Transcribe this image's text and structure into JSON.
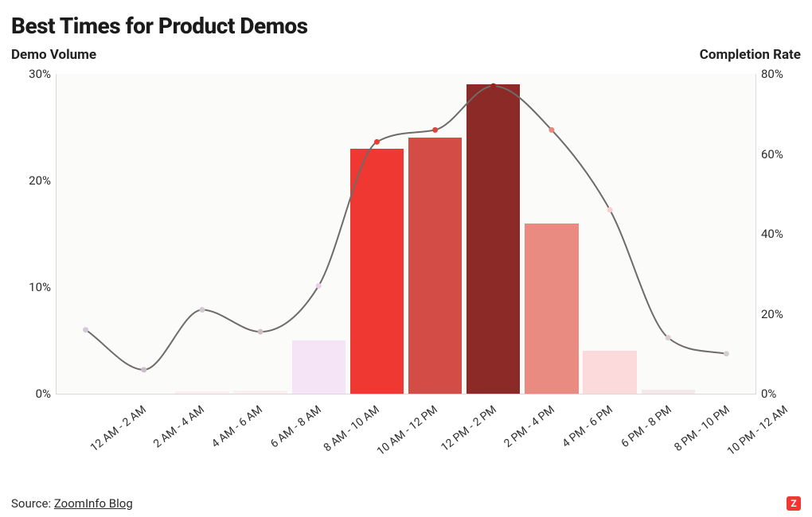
{
  "title": "Best Times for Product Demos",
  "title_fontsize": 28,
  "left_axis_label": "Demo Volume",
  "right_axis_label": "Completion Rate",
  "background_color": "#ffffff",
  "plot_background": "#fbfbfa",
  "axis_line_color": "#d9d9d7",
  "text_color": "#1b1b1b",
  "chart": {
    "type": "bar+line",
    "categories": [
      "12 AM - 2 AM",
      "2 AM - 4 AM",
      "4 AM - 6 AM",
      "6 AM - 8 AM",
      "8 AM - 10 AM",
      "10 AM - 12 PM",
      "12 PM - 2 PM",
      "2 PM - 4 PM",
      "4 PM - 6 PM",
      "6 PM - 8 PM",
      "8 PM - 10 PM",
      "10 PM - 12 AM"
    ],
    "bars": {
      "value_unit": "%",
      "ylim": [
        0,
        30
      ],
      "ytick_step": 10,
      "values": [
        0,
        0,
        0.2,
        0.3,
        5,
        23,
        24,
        29,
        16,
        4,
        0.4,
        0
      ],
      "colors": [
        "#ffffff",
        "#ffffff",
        "#fceff2",
        "#fceff2",
        "#f5e4f5",
        "#ee3831",
        "#d34c45",
        "#8b2a26",
        "#e98b80",
        "#fcd9db",
        "#f4e8ea",
        "#ffffff"
      ],
      "bar_width_ratio": 0.92
    },
    "line": {
      "value_unit": "%",
      "ylim": [
        0,
        80
      ],
      "ytick_step": 20,
      "stroke_color": "#6e6b68",
      "stroke_width": 2,
      "values": [
        16,
        6,
        21,
        15.5,
        27,
        63,
        66,
        77,
        66,
        46,
        14,
        10
      ],
      "marker_colors": [
        "#d4c9d9",
        "#c8bfc9",
        "#d3c7cf",
        "#cbbfc6",
        "#e9cfe3",
        "#ec3c33",
        "#d6483f",
        "#9a221e",
        "#e68a7f",
        "#f7cdd0",
        "#d7cfd3",
        "#d3cfd1"
      ],
      "marker_radius": 3.5,
      "interpolation": "monotone-cubic"
    },
    "x_label_rotation_deg": -38,
    "x_label_fontsize": 14,
    "y_label_fontsize": 15
  },
  "footer": {
    "source_prefix": "Source: ",
    "source_text": "ZoomInfo Blog",
    "logo_letter": "Z",
    "logo_bg": "#ee3831",
    "logo_fg": "#ffffff"
  }
}
